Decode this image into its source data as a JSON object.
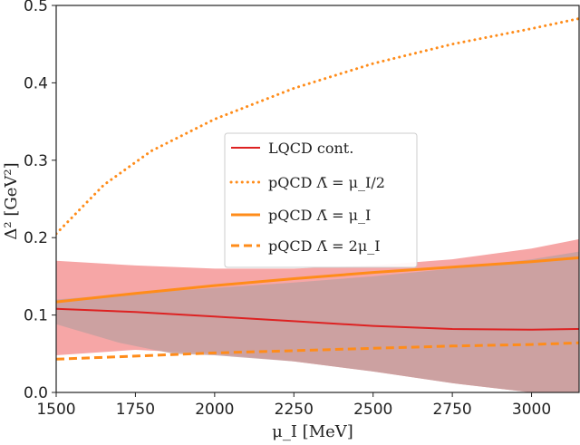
{
  "chart_data": {
    "type": "line",
    "xlabel": "μ_I [MeV]",
    "ylabel": "Δ² [GeV²]",
    "xlim": [
      1500,
      3150
    ],
    "ylim": [
      0.0,
      0.5
    ],
    "grid": false,
    "legend_placement": "center",
    "x_ticks": [
      "1500",
      "1750",
      "2000",
      "2250",
      "2500",
      "2750",
      "3000"
    ],
    "y_ticks": [
      "0.0",
      "0.1",
      "0.2",
      "0.3",
      "0.4",
      "0.5"
    ],
    "colors": {
      "lqcd": "#dd2222",
      "lqcd_band": "#f6a6a6",
      "pqcd": "#ff8c1a",
      "overlap": "#c4a0a0"
    },
    "legend": [
      {
        "key": "lqcd",
        "label": "LQCD cont.",
        "style": "solid-red"
      },
      {
        "key": "pqcd_half",
        "label": "pQCD Λ̄ = μ_I/2",
        "style": "dotted-orange"
      },
      {
        "key": "pqcd_one",
        "label": "pQCD Λ̄ = μ_I",
        "style": "solid-orange"
      },
      {
        "key": "pqcd_two",
        "label": "pQCD Λ̄ = 2μ_I",
        "style": "dashed-orange"
      }
    ],
    "series": [
      {
        "key": "lqcd",
        "x": [
          1500,
          1750,
          2000,
          2250,
          2500,
          2750,
          3000,
          3150
        ],
        "y": [
          0.108,
          0.104,
          0.098,
          0.092,
          0.086,
          0.082,
          0.081,
          0.082
        ],
        "band_upper": [
          0.17,
          0.164,
          0.16,
          0.16,
          0.164,
          0.172,
          0.186,
          0.198
        ],
        "band_lower": [
          0.048,
          0.055,
          0.05,
          0.04,
          0.027,
          0.012,
          0.0,
          -0.01
        ]
      },
      {
        "key": "pqcd_half",
        "x": [
          1500,
          1650,
          1800,
          2000,
          2250,
          2500,
          2750,
          3000,
          3150
        ],
        "y": [
          0.205,
          0.268,
          0.312,
          0.353,
          0.393,
          0.425,
          0.45,
          0.47,
          0.483
        ]
      },
      {
        "key": "pqcd_one",
        "x": [
          1500,
          1750,
          2000,
          2250,
          2500,
          2750,
          3000,
          3150
        ],
        "y": [
          0.117,
          0.128,
          0.138,
          0.147,
          0.155,
          0.162,
          0.169,
          0.174
        ]
      },
      {
        "key": "pqcd_two",
        "x": [
          1500,
          1750,
          2000,
          2250,
          2500,
          2750,
          3000,
          3150
        ],
        "y": [
          0.043,
          0.047,
          0.051,
          0.054,
          0.057,
          0.06,
          0.062,
          0.064
        ]
      }
    ]
  }
}
